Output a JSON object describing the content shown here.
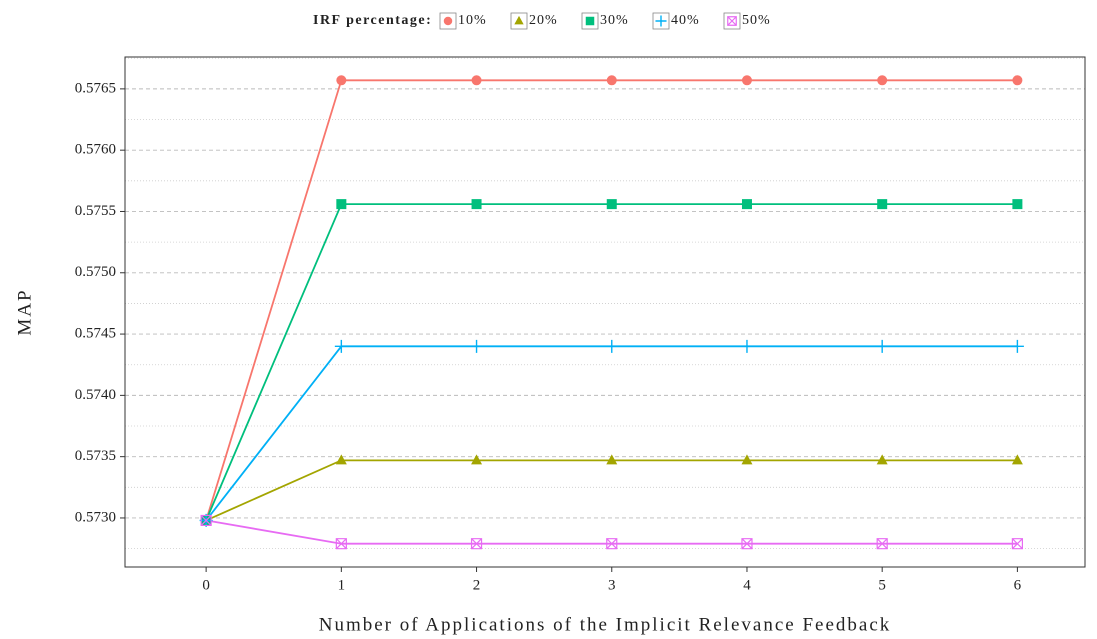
{
  "chart_data": {
    "type": "line",
    "legend_title": "IRF percentage:",
    "x_label": "Number of Applications of the Implicit Relevance Feedback",
    "y_label": "MAP",
    "x": [
      0,
      1,
      2,
      3,
      4,
      5,
      6
    ],
    "series": [
      {
        "name": "10%",
        "color": "#F8766D",
        "marker": "circle",
        "values": [
          0.57298,
          0.57657,
          0.57657,
          0.57657,
          0.57657,
          0.57657,
          0.57657
        ]
      },
      {
        "name": "20%",
        "color": "#A3A500",
        "marker": "triangle",
        "values": [
          0.57298,
          0.57347,
          0.57347,
          0.57347,
          0.57347,
          0.57347,
          0.57347
        ]
      },
      {
        "name": "30%",
        "color": "#00BF7D",
        "marker": "square",
        "values": [
          0.57298,
          0.57556,
          0.57556,
          0.57556,
          0.57556,
          0.57556,
          0.57556
        ]
      },
      {
        "name": "40%",
        "color": "#00B0F6",
        "marker": "plus",
        "values": [
          0.57298,
          0.5744,
          0.5744,
          0.5744,
          0.5744,
          0.5744,
          0.5744
        ]
      },
      {
        "name": "50%",
        "color": "#E76BF3",
        "marker": "boxx",
        "values": [
          0.57298,
          0.57279,
          0.57279,
          0.57279,
          0.57279,
          0.57279,
          0.57279
        ]
      }
    ],
    "xlim": [
      -0.6,
      6.5
    ],
    "ylim": [
      0.5726,
      0.57676
    ],
    "xticks": [
      0,
      1,
      2,
      3,
      4,
      5,
      6
    ],
    "yticks": [
      {
        "value": 0.573,
        "label": "0.5730"
      },
      0.5735,
      {
        "value": 0.574,
        "label": "0.5740"
      },
      0.5745,
      {
        "value": 0.575,
        "label": "0.5750"
      },
      0.5755,
      {
        "value": 0.576,
        "label": "0.5760"
      },
      0.5765
    ],
    "grid": true,
    "legend": "top"
  }
}
